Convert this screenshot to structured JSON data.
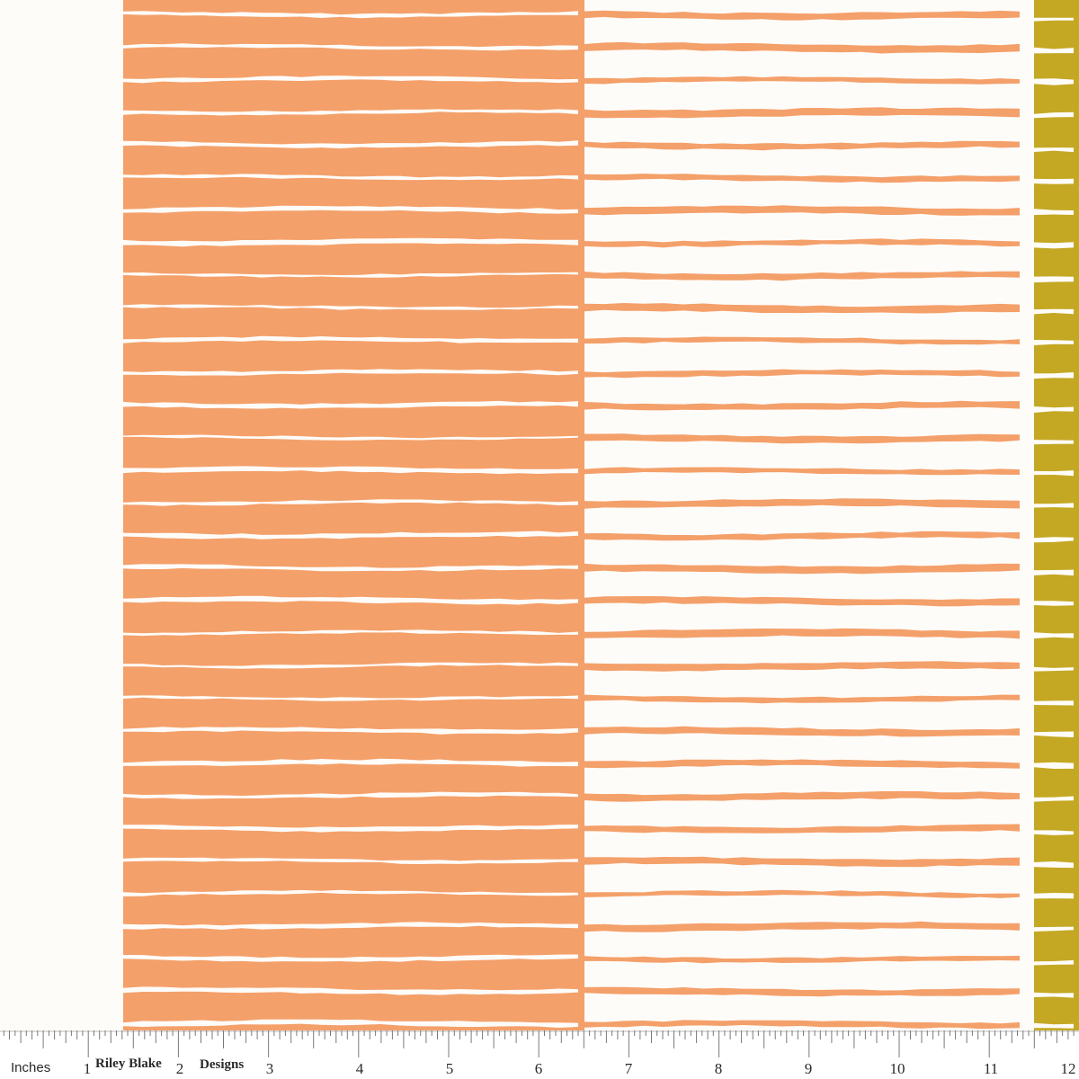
{
  "image": {
    "subject": "fabric-swatch",
    "colors": {
      "cream_background": "#fefcf9",
      "orange": "#f4a06a",
      "white_stripe": "#fefcf9",
      "mustard": "#c4a823",
      "ruler_ink": "#2a2a2a"
    }
  },
  "ruler": {
    "unit_label": "Inches",
    "brand_part1": "Riley Blake",
    "brand_part2": "Designs",
    "numbers": [
      "1",
      "2",
      "3",
      "4",
      "5",
      "6",
      "7",
      "8",
      "9",
      "10",
      "11",
      "12"
    ]
  }
}
